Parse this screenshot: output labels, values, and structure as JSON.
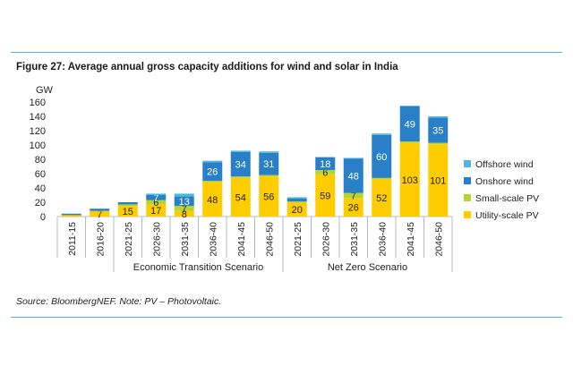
{
  "figure_title": "Figure 27:  Average annual gross capacity additions for wind and solar in India",
  "source_note": "Source: BloombergNEF. Note: PV – Photovoltaic.",
  "chart_data": {
    "type": "bar",
    "stacked": true,
    "ylabel": "GW",
    "ylim": [
      0,
      160
    ],
    "yticks": [
      0,
      20,
      40,
      60,
      80,
      100,
      120,
      140,
      160
    ],
    "grid": false,
    "legend_position": "right",
    "categories": [
      "2011-15",
      "2016-20",
      "2021-25",
      "2026-30",
      "2031-35",
      "2036-40",
      "2041-45",
      "2046-50",
      "2021-25",
      "2026-30",
      "2031-35",
      "2036-40",
      "2041-45",
      "2046-50"
    ],
    "groups": [
      {
        "name": "Economic Transition Scenario",
        "start": 2,
        "end": 7
      },
      {
        "name": "Net Zero Scenario",
        "start": 8,
        "end": 13
      }
    ],
    "series": [
      {
        "name": "Utility-scale PV",
        "color": "#ffcc00",
        "values": [
          2,
          7,
          15,
          17,
          8,
          48,
          54,
          56,
          20,
          59,
          26,
          52,
          103,
          101
        ]
      },
      {
        "name": "Small-scale PV",
        "color": "#b5d334",
        "values": [
          0,
          1,
          2,
          6,
          7,
          2,
          2,
          2,
          1,
          6,
          7,
          2,
          2,
          2
        ]
      },
      {
        "name": "Onshore wind",
        "color": "#2a7fc9",
        "values": [
          2,
          3,
          3,
          7,
          13,
          26,
          34,
          31,
          4,
          18,
          48,
          60,
          49,
          35
        ]
      },
      {
        "name": "Offshore wind",
        "color": "#4fb7dc",
        "values": [
          0,
          0,
          0,
          2,
          4,
          2,
          2,
          2,
          2,
          0,
          1,
          2,
          1,
          2
        ]
      }
    ],
    "data_labels": {
      "Utility-scale PV": [
        "",
        "7",
        "15",
        "17",
        "8",
        "48",
        "54",
        "56",
        "20",
        "59",
        "26",
        "52",
        "103",
        "101"
      ],
      "Small-scale PV": [
        "",
        "",
        "",
        "6",
        "7",
        "",
        "",
        "",
        "",
        "6",
        "7",
        "",
        "",
        ""
      ],
      "Onshore wind": [
        "",
        "",
        "",
        "7",
        "13",
        "26",
        "34",
        "31",
        "",
        "18",
        "48",
        "60",
        "49",
        "35"
      ],
      "Offshore wind": [
        "",
        "",
        "",
        "",
        "",
        "",
        "",
        "",
        "",
        "",
        "",
        "",
        "",
        ""
      ]
    },
    "legend_order": [
      "Offshore wind",
      "Onshore wind",
      "Small-scale PV",
      "Utility-scale PV"
    ]
  }
}
